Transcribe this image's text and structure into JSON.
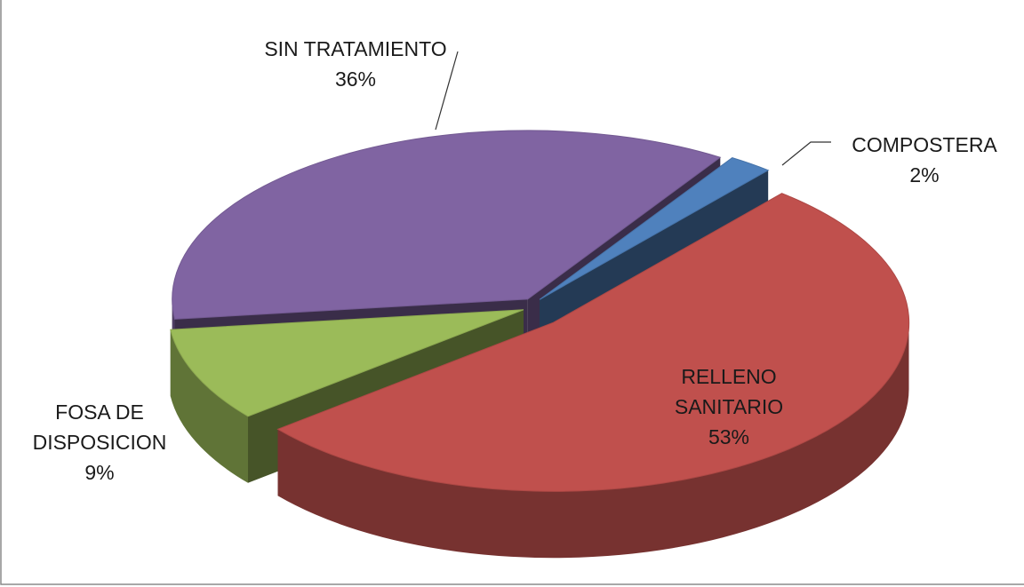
{
  "chart_data": {
    "type": "pie",
    "categories": [
      "RELLENO SANITARIO",
      "FOSA DE DISPOSICION",
      "SIN TRATAMIENTO",
      "COMPOSTERA"
    ],
    "values": [
      53,
      9,
      36,
      2
    ],
    "value_labels": [
      "53%",
      "9%",
      "36%",
      "2%"
    ],
    "colors": [
      "#c0504d",
      "#9bbb59",
      "#8064a2",
      "#4f81bd"
    ]
  }
}
